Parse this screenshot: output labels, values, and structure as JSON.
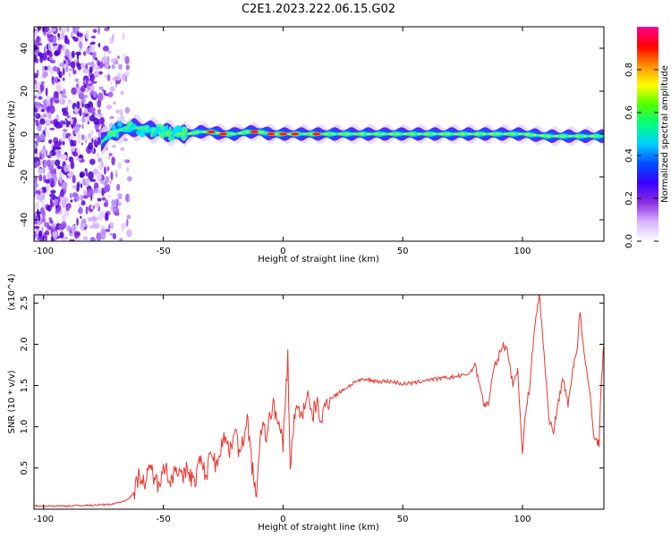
{
  "title": "C2E1.2023.222.06.15.G02",
  "chart_data": [
    {
      "type": "heatmap",
      "xlabel": "Height of straight line (km)",
      "ylabel": "Frequency (Hz)",
      "xlim": [
        -104,
        134
      ],
      "ylim": [
        -50,
        50
      ],
      "xticks": [
        -100,
        -50,
        0,
        50,
        100
      ],
      "yticks": [
        -40,
        -20,
        0,
        20,
        40
      ],
      "colorbar": {
        "label": "Normalized spectral amplitude",
        "range": [
          0,
          1
        ],
        "ticks": [
          0.0,
          0.2,
          0.4,
          0.6,
          0.8
        ],
        "colors": [
          "#ffffff",
          "#d9b3ff",
          "#8a2be2",
          "#3a00ff",
          "#0050ff",
          "#00d0ff",
          "#00ff80",
          "#50ff00",
          "#ffff00",
          "#ff9000",
          "#ff0000",
          "#ff0090"
        ]
      },
      "ridge": {
        "centerline": [
          [
            -76,
            -4
          ],
          [
            -72,
            0
          ],
          [
            -68,
            2
          ],
          [
            -62,
            3
          ],
          [
            -56,
            2
          ],
          [
            -50,
            1
          ],
          [
            -45,
            0
          ],
          [
            -40,
            0
          ],
          [
            -35,
            1
          ],
          [
            -30,
            1
          ],
          [
            -25,
            0
          ],
          [
            -20,
            0
          ],
          [
            -15,
            1
          ],
          [
            -10,
            1
          ],
          [
            -5,
            0
          ],
          [
            0,
            0
          ],
          [
            5,
            0
          ],
          [
            10,
            0
          ],
          [
            20,
            0
          ],
          [
            40,
            0
          ],
          [
            60,
            0
          ],
          [
            80,
            0
          ],
          [
            100,
            0
          ],
          [
            110,
            -1
          ],
          [
            120,
            -1
          ],
          [
            134,
            -1
          ]
        ],
        "peaks": [
          [
            -30,
            1
          ],
          [
            -25,
            0
          ],
          [
            -12,
            1
          ],
          [
            -5,
            0
          ],
          [
            0,
            0
          ],
          [
            5,
            0
          ],
          [
            14,
            0
          ]
        ]
      }
    },
    {
      "type": "line",
      "xlabel": "Height of straight line (km)",
      "ylabel": "SNR (10 * v/v)",
      "multiplier": "(x10^4)",
      "xlim": [
        -104,
        134
      ],
      "ylim": [
        0,
        2.6
      ],
      "xticks": [
        -100,
        -50,
        0,
        50,
        100
      ],
      "yticks": [
        0.5,
        1.0,
        1.5,
        2.0,
        2.5
      ],
      "series": [
        {
          "color": "#e8362f",
          "points": [
            [
              -104,
              0.04
            ],
            [
              -90,
              0.04
            ],
            [
              -78,
              0.05
            ],
            [
              -72,
              0.06
            ],
            [
              -66,
              0.1
            ],
            [
              -62,
              0.2
            ],
            [
              -60,
              0.45
            ],
            [
              -58,
              0.3
            ],
            [
              -55,
              0.5
            ],
            [
              -52,
              0.25
            ],
            [
              -50,
              0.6
            ],
            [
              -47,
              0.3
            ],
            [
              -45,
              0.55
            ],
            [
              -42,
              0.35
            ],
            [
              -40,
              0.5
            ],
            [
              -37,
              0.3
            ],
            [
              -35,
              0.6
            ],
            [
              -32,
              0.4
            ],
            [
              -30,
              0.75
            ],
            [
              -28,
              0.5
            ],
            [
              -25,
              0.9
            ],
            [
              -22,
              0.7
            ],
            [
              -20,
              1.05
            ],
            [
              -18,
              0.6
            ],
            [
              -15,
              1.15
            ],
            [
              -13,
              0.5
            ],
            [
              -11,
              0.2
            ],
            [
              -9,
              1.0
            ],
            [
              -7,
              0.9
            ],
            [
              -4,
              1.3
            ],
            [
              -2,
              1.0
            ],
            [
              0,
              0.8
            ],
            [
              2,
              1.85
            ],
            [
              3,
              0.5
            ],
            [
              5,
              1.2
            ],
            [
              8,
              1.15
            ],
            [
              10,
              1.4
            ],
            [
              12,
              1.1
            ],
            [
              14,
              1.3
            ],
            [
              16,
              1.05
            ],
            [
              18,
              1.3
            ],
            [
              20,
              1.35
            ],
            [
              23,
              1.4
            ],
            [
              25,
              1.45
            ],
            [
              28,
              1.5
            ],
            [
              30,
              1.55
            ],
            [
              35,
              1.57
            ],
            [
              40,
              1.55
            ],
            [
              45,
              1.55
            ],
            [
              50,
              1.52
            ],
            [
              55,
              1.53
            ],
            [
              60,
              1.57
            ],
            [
              65,
              1.58
            ],
            [
              70,
              1.6
            ],
            [
              75,
              1.62
            ],
            [
              78,
              1.65
            ],
            [
              80,
              1.75
            ],
            [
              82,
              1.55
            ],
            [
              84,
              1.25
            ],
            [
              86,
              1.3
            ],
            [
              88,
              1.7
            ],
            [
              90,
              1.85
            ],
            [
              92,
              2.0
            ],
            [
              94,
              1.9
            ],
            [
              96,
              1.5
            ],
            [
              98,
              1.7
            ],
            [
              99,
              1.2
            ],
            [
              100,
              0.65
            ],
            [
              101,
              1.1
            ],
            [
              103,
              1.5
            ],
            [
              105,
              2.2
            ],
            [
              107,
              2.6
            ],
            [
              109,
              1.9
            ],
            [
              111,
              1.1
            ],
            [
              113,
              0.95
            ],
            [
              115,
              1.3
            ],
            [
              117,
              1.6
            ],
            [
              119,
              1.25
            ],
            [
              121,
              1.7
            ],
            [
              123,
              2.0
            ],
            [
              124,
              2.4
            ],
            [
              126,
              1.8
            ],
            [
              128,
              1.45
            ],
            [
              130,
              0.85
            ],
            [
              132,
              0.8
            ],
            [
              133,
              1.6
            ],
            [
              134,
              2.0
            ]
          ]
        }
      ]
    }
  ]
}
